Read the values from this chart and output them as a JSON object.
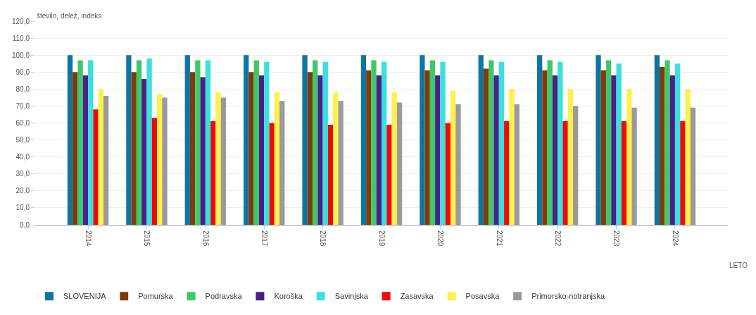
{
  "chart_data": {
    "type": "bar",
    "ylabel": "število, delež, indeks",
    "xlabel": "LETO",
    "categories": [
      "2014",
      "2015",
      "2016",
      "2017",
      "2018",
      "2019",
      "2020",
      "2021",
      "2022",
      "2023",
      "2024"
    ],
    "series": [
      {
        "name": "SLOVENIJA",
        "color": "#0f75a0",
        "values": [
          100,
          100,
          100,
          100,
          100,
          100,
          100,
          100,
          100,
          100,
          100
        ]
      },
      {
        "name": "Pomurska",
        "color": "#7f3b08",
        "values": [
          90,
          90,
          90,
          90,
          90,
          91,
          91,
          92,
          91,
          91,
          93
        ]
      },
      {
        "name": "Podravska",
        "color": "#3dc96b",
        "values": [
          97,
          97,
          97,
          97,
          97,
          97,
          97,
          97,
          97,
          97,
          97
        ]
      },
      {
        "name": "Koroška",
        "color": "#4b2088",
        "values": [
          88,
          86,
          87,
          88,
          88,
          88,
          88,
          88,
          88,
          88,
          88
        ]
      },
      {
        "name": "Savinjska",
        "color": "#38e0e0",
        "values": [
          97,
          98,
          97,
          96,
          96,
          96,
          96,
          96,
          96,
          95,
          95
        ]
      },
      {
        "name": "Zasavska",
        "color": "#ee0a0a",
        "values": [
          68,
          63,
          61,
          60,
          59,
          59,
          60,
          61,
          61,
          61,
          61
        ]
      },
      {
        "name": "Posavska",
        "color": "#fff04a",
        "values": [
          80,
          77,
          78,
          78,
          78,
          78,
          79,
          80,
          80,
          80,
          80
        ]
      },
      {
        "name": "Primorsko-notranjska",
        "color": "#9a9a9a",
        "values": [
          76,
          75,
          75,
          73,
          73,
          72,
          71,
          71,
          70,
          69,
          69
        ]
      }
    ],
    "ylim": [
      0,
      120
    ],
    "yticks": [
      {
        "value": 0,
        "label": "0,0"
      },
      {
        "value": 10,
        "label": "10,0"
      },
      {
        "value": 20,
        "label": "20,0"
      },
      {
        "value": 30,
        "label": "30,0"
      },
      {
        "value": 40,
        "label": "40,0"
      },
      {
        "value": 50,
        "label": "50,0"
      },
      {
        "value": 60,
        "label": "60,0"
      },
      {
        "value": 70,
        "label": "70,0"
      },
      {
        "value": 80,
        "label": "80,0"
      },
      {
        "value": 90,
        "label": "90,0"
      },
      {
        "value": 100,
        "label": "100,0"
      },
      {
        "value": 110,
        "label": "110,0"
      },
      {
        "value": 120,
        "label": "120,0"
      }
    ],
    "grid": "y",
    "legend": "bottom"
  }
}
